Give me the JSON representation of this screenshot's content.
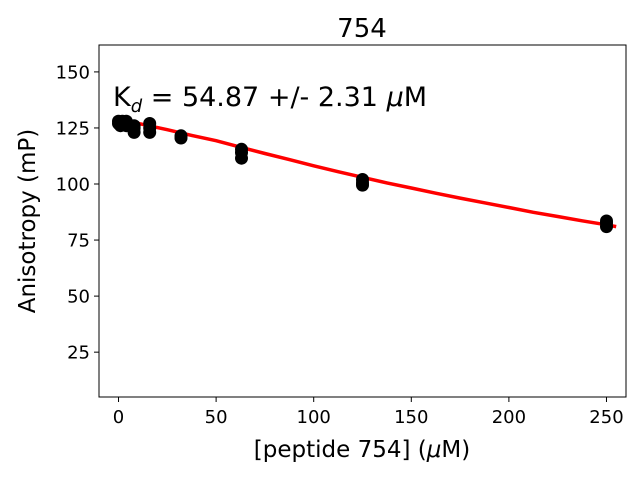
{
  "chart_data": {
    "type": "scatter",
    "title": "754",
    "xlabel_pre": "[peptide 754] (",
    "xlabel_mu": "μ",
    "xlabel_post": "M)",
    "ylabel": "Anisotropy (mP)",
    "xlim": [
      -10,
      260
    ],
    "ylim": [
      5,
      162
    ],
    "x_ticks": [
      0,
      50,
      100,
      150,
      200,
      250
    ],
    "y_ticks": [
      25,
      50,
      75,
      100,
      125,
      150
    ],
    "annotation": {
      "k": "K",
      "sub": "d",
      "mid": " = 54.87 +/- 2.31 ",
      "mu": "μ",
      "unit": "M"
    },
    "points": {
      "color": "#000000",
      "x": [
        0,
        0,
        1,
        2,
        2,
        4,
        4,
        8,
        8,
        8,
        16,
        16,
        16,
        32,
        32,
        63,
        63,
        63,
        125,
        125,
        125,
        250,
        250,
        250
      ],
      "y": [
        127,
        128,
        126,
        127,
        128,
        126,
        128,
        123,
        125,
        126,
        123,
        125,
        127,
        120.5,
        121.5,
        111.5,
        114,
        115.5,
        99.5,
        100.5,
        102,
        81,
        82.5,
        83.5
      ]
    },
    "fit": {
      "color": "#ff0000",
      "x": [
        0,
        12.5,
        25,
        37.5,
        50,
        62.5,
        75,
        87.5,
        100,
        112.5,
        125,
        137.5,
        150,
        162.5,
        175,
        187.5,
        200,
        212.5,
        225,
        237.5,
        250,
        255
      ],
      "y": [
        129,
        126.6,
        124.2,
        121.7,
        119.3,
        116.4,
        113.6,
        110.9,
        108.1,
        105.5,
        103,
        100.5,
        98.2,
        95.9,
        93.7,
        91.6,
        89.5,
        87.4,
        85.5,
        83.6,
        81.8,
        81
      ]
    }
  }
}
